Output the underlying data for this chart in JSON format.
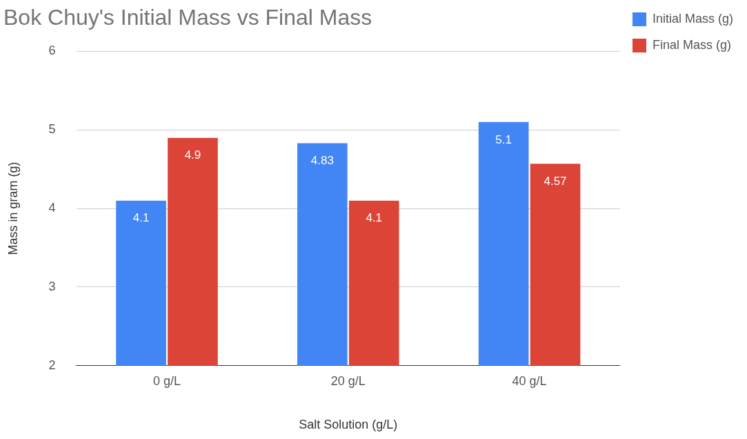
{
  "chart_data": {
    "type": "bar",
    "title": "Bok Chuy's Initial Mass vs Final Mass",
    "xlabel": "Salt Solution (g/L)",
    "ylabel": "Mass in gram (g)",
    "categories": [
      "0 g/L",
      "20 g/L",
      "40 g/L"
    ],
    "series": [
      {
        "name": "Initial Mass (g)",
        "color": "#4285f4",
        "values": [
          4.1,
          4.83,
          5.1
        ]
      },
      {
        "name": "Final Mass (g)",
        "color": "#db4437",
        "values": [
          4.9,
          4.1,
          4.57
        ]
      }
    ],
    "ylim": [
      2,
      6
    ],
    "yticks": [
      2,
      3,
      4,
      5,
      6
    ],
    "grid": "y",
    "legend": "top right",
    "data_labels": true
  }
}
